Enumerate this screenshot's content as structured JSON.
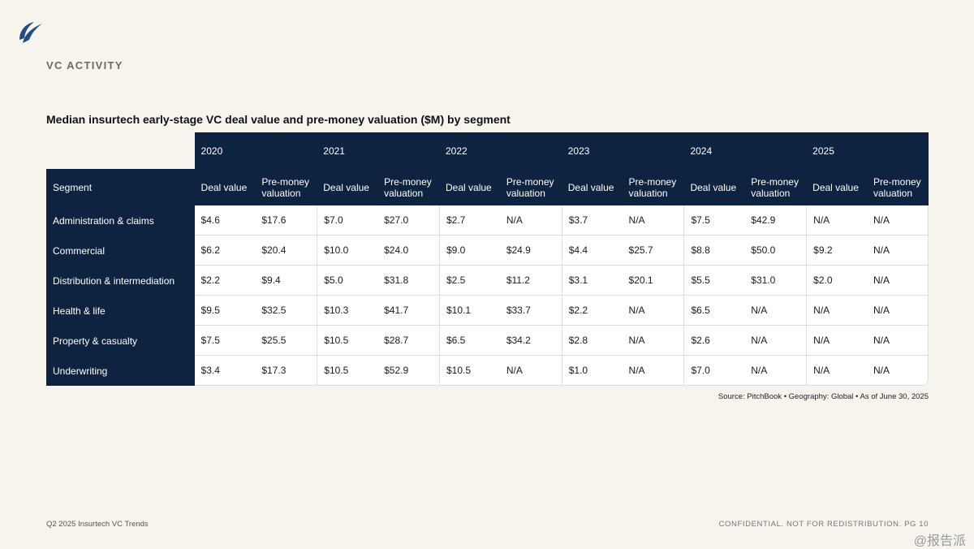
{
  "header": {
    "section": "VC ACTIVITY",
    "logo_color": "#1f4e85"
  },
  "table": {
    "title": "Median insurtech early-stage VC deal value and pre-money valuation ($M) by segment",
    "years": [
      "2020",
      "2021",
      "2022",
      "2023",
      "2024",
      "2025"
    ],
    "segment_header": "Segment",
    "sub_headers": [
      "Deal value",
      "Pre-money valuation"
    ],
    "rows": [
      {
        "segment": "Administration & claims",
        "values": [
          "$4.6",
          "$17.6",
          "$7.0",
          "$27.0",
          "$2.7",
          "N/A",
          "$3.7",
          "N/A",
          "$7.5",
          "$42.9",
          "N/A",
          "N/A"
        ]
      },
      {
        "segment": "Commercial",
        "values": [
          "$6.2",
          "$20.4",
          "$10.0",
          "$24.0",
          "$9.0",
          "$24.9",
          "$4.4",
          "$25.7",
          "$8.8",
          "$50.0",
          "$9.2",
          "N/A"
        ]
      },
      {
        "segment": "Distribution & intermediation",
        "values": [
          "$2.2",
          "$9.4",
          "$5.0",
          "$31.8",
          "$2.5",
          "$11.2",
          "$3.1",
          "$20.1",
          "$5.5",
          "$31.0",
          "$2.0",
          "N/A"
        ]
      },
      {
        "segment": "Health & life",
        "values": [
          "$9.5",
          "$32.5",
          "$10.3",
          "$41.7",
          "$10.1",
          "$33.7",
          "$2.2",
          "N/A",
          "$6.5",
          "N/A",
          "N/A",
          "N/A"
        ]
      },
      {
        "segment": "Property & casualty",
        "values": [
          "$7.5",
          "$25.5",
          "$10.5",
          "$28.7",
          "$6.5",
          "$34.2",
          "$2.8",
          "N/A",
          "$2.6",
          "N/A",
          "N/A",
          "N/A"
        ]
      },
      {
        "segment": "Underwriting",
        "values": [
          "$3.4",
          "$17.3",
          "$10.5",
          "$52.9",
          "$10.5",
          "N/A",
          "$1.0",
          "N/A",
          "$7.0",
          "N/A",
          "N/A",
          "N/A"
        ]
      }
    ],
    "header_color": "#0e2340"
  },
  "source": "Source: PitchBook  •  Geography: Global  •  As of June 30, 2025",
  "footer": {
    "left": "Q2 2025 Insurtech VC Trends",
    "right": "CONFIDENTIAL. NOT FOR REDISTRIBUTION.  PG 10",
    "watermark": "@报告派"
  }
}
